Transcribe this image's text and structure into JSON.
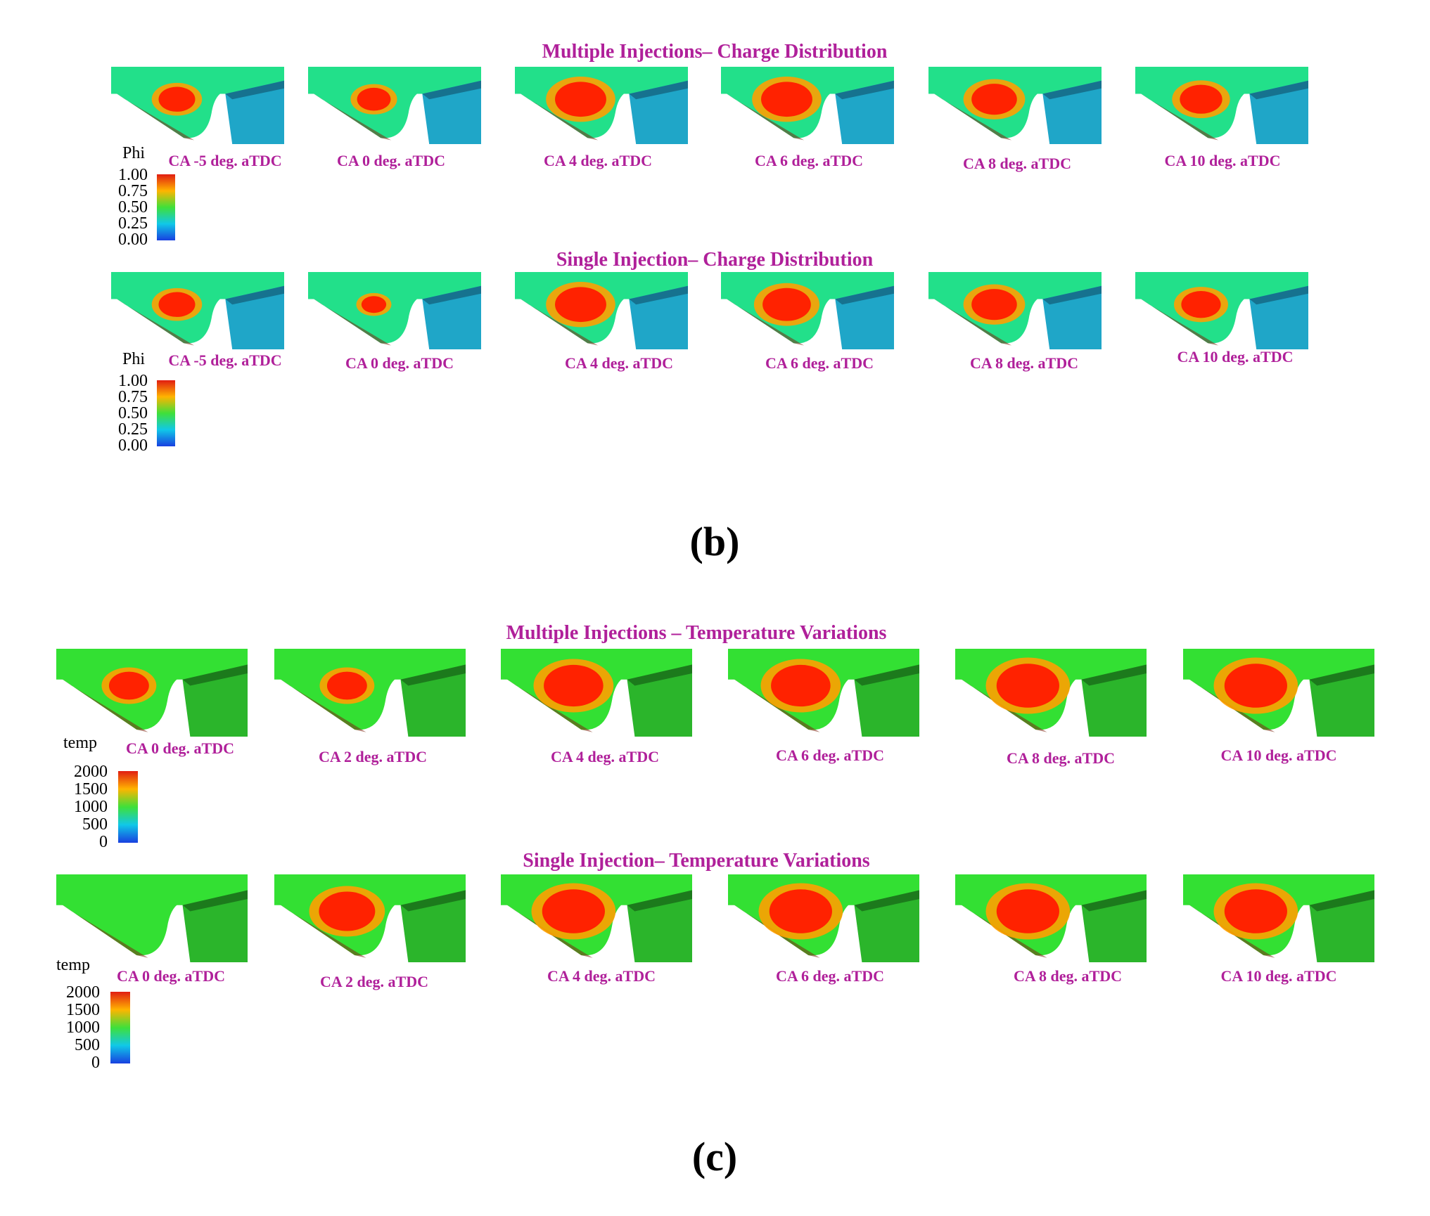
{
  "panels": [
    {
      "label": "(b)",
      "scheme": "phi",
      "rows": [
        {
          "title": "Multiple Injections– Charge Distribution",
          "legend": {
            "title": "Phi",
            "ticks": [
              "1.00",
              "0.75",
              "0.50",
              "0.25",
              "0.00"
            ]
          },
          "frames": [
            {
              "caption": "CA -5 deg. aTDC",
              "intensity": 0.55
            },
            {
              "caption": "CA 0 deg. aTDC",
              "intensity": 0.5
            },
            {
              "caption": "CA 4 deg. aTDC",
              "intensity": 0.8
            },
            {
              "caption": "CA 6 deg. aTDC",
              "intensity": 0.8
            },
            {
              "caption": "CA 8 deg. aTDC",
              "intensity": 0.7
            },
            {
              "caption": "CA 10 deg. aTDC",
              "intensity": 0.65
            }
          ]
        },
        {
          "title": "Single Injection– Charge Distribution",
          "legend": {
            "title": "Phi",
            "ticks": [
              "1.00",
              "0.75",
              "0.50",
              "0.25",
              "0.00"
            ]
          },
          "frames": [
            {
              "caption": "CA -5 deg. aTDC",
              "intensity": 0.55
            },
            {
              "caption": "CA 0 deg. aTDC",
              "intensity": 0.35
            },
            {
              "caption": "CA 4 deg. aTDC",
              "intensity": 0.8
            },
            {
              "caption": "CA 6 deg. aTDC",
              "intensity": 0.75
            },
            {
              "caption": "CA 8 deg. aTDC",
              "intensity": 0.7
            },
            {
              "caption": "CA 10 deg. aTDC",
              "intensity": 0.6
            }
          ]
        }
      ]
    },
    {
      "label": "(c)",
      "scheme": "temp",
      "rows": [
        {
          "title": "Multiple Injections – Temperature Variations",
          "legend": {
            "title": "temp",
            "ticks": [
              "2000",
              "1500",
              "1000",
              "500",
              "0"
            ]
          },
          "frames": [
            {
              "caption": "CA 0 deg. aTDC",
              "intensity": 0.55
            },
            {
              "caption": "CA 2 deg. aTDC",
              "intensity": 0.55
            },
            {
              "caption": "CA 4 deg. aTDC",
              "intensity": 0.85
            },
            {
              "caption": "CA 6 deg. aTDC",
              "intensity": 0.85
            },
            {
              "caption": "CA 8 deg. aTDC",
              "intensity": 0.9
            },
            {
              "caption": "CA 10 deg. aTDC",
              "intensity": 0.9
            }
          ]
        },
        {
          "title": "Single Injection– Temperature Variations",
          "legend": {
            "title": "temp",
            "ticks": [
              "2000",
              "1500",
              "1000",
              "500",
              "0"
            ]
          },
          "frames": [
            {
              "caption": "CA 0 deg. aTDC",
              "intensity": 0.0
            },
            {
              "caption": "CA 2 deg. aTDC",
              "intensity": 0.8
            },
            {
              "caption": "CA 4 deg. aTDC",
              "intensity": 0.9
            },
            {
              "caption": "CA 6 deg. aTDC",
              "intensity": 0.9
            },
            {
              "caption": "CA 8 deg. aTDC",
              "intensity": 0.9
            },
            {
              "caption": "CA 10 deg. aTDC",
              "intensity": 0.9
            }
          ]
        }
      ]
    }
  ],
  "colors": {
    "title": "#b0209a",
    "phi_bg": "#22e08a",
    "phi_wall": "#1fa6c8",
    "phi_wall_dark": "#16728f",
    "temp_bg": "#33e033",
    "temp_wall": "#2bb52b",
    "temp_wall_dark": "#1c7a1c",
    "hot": "#ff2200",
    "warm": "#ffa000",
    "edge": "#7a2a10"
  }
}
